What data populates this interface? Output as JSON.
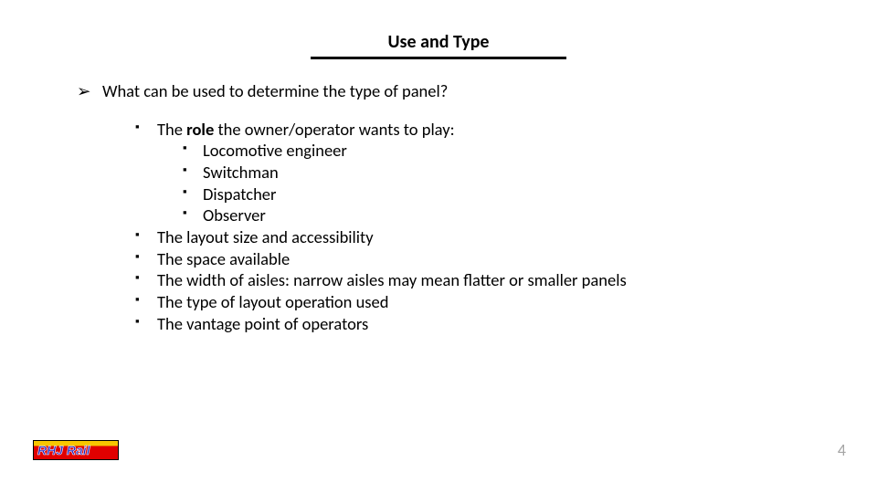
{
  "title": "Use and Type",
  "colors": {
    "text": "#000000",
    "background": "#ffffff",
    "pagenum": "#a5a5a5",
    "logo_text": "#1a1fbf",
    "logo_top": "#f7c600",
    "logo_bottom": "#e00000",
    "underline": "#000000"
  },
  "question": "What can be used to determine the type of panel?",
  "items": {
    "role_pre": "The ",
    "role_bold": "role",
    "role_post": " the owner/operator wants to play:",
    "roles": {
      "r1": "Locomotive engineer",
      "r2": "Switchman",
      "r3": "Dispatcher",
      "r4": "Observer"
    },
    "i2": "The layout size and accessibility",
    "i3": "The space available",
    "i4": "The width of aisles:  narrow aisles may mean flatter or smaller panels",
    "i5": "The type of layout operation used",
    "i6": "The vantage point of operators"
  },
  "logo": "RHJ Rail",
  "page_number": "4"
}
